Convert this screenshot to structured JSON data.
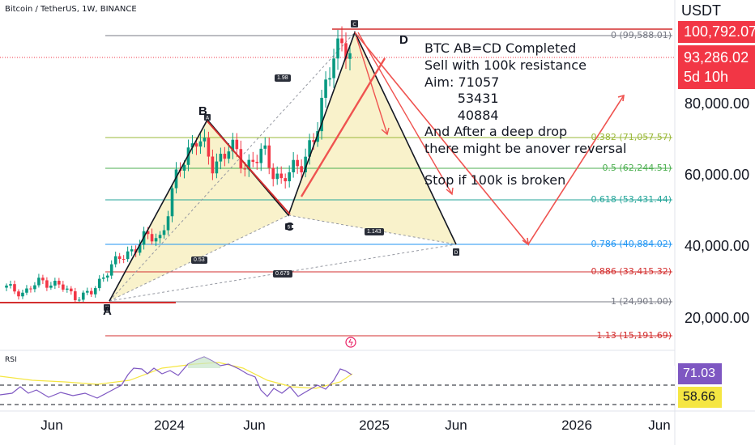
{
  "header": {
    "symbol_title": "Bitcoin / TetherUS, 1W, BINANCE"
  },
  "price_axis": {
    "currency": "USDT",
    "ticks": [
      "80,000.00",
      "60,000.00",
      "40,000.00",
      "20,000.00"
    ],
    "high_tag": {
      "value": "100,792.07",
      "color": "#f23645"
    },
    "last_tag": {
      "value": "93,286.02",
      "countdown": "5d 10h",
      "color": "#f23645"
    }
  },
  "time_axis": {
    "ticks": [
      "Jun",
      "2024",
      "Jun",
      "2025",
      "Jun",
      "2026",
      "Jun"
    ]
  },
  "annotation": {
    "lines": [
      "BTC AB=CD Completed",
      "Sell with 100k resistance",
      "Aim: 71057",
      "        53431",
      "        40884",
      "And After a deep drop",
      "there might be anover reversal",
      "",
      "Stop if 100k is broken"
    ]
  },
  "pattern_points": [
    "A",
    "B",
    "C",
    "D"
  ],
  "pattern_marks": [
    "X",
    "A",
    "B",
    "C",
    "D"
  ],
  "ratios": [
    "1.98",
    "0.53",
    "1.143",
    "0.679"
  ],
  "fib_levels": [
    {
      "ratio": "0",
      "price": "99,588.01",
      "color": "#787b86"
    },
    {
      "ratio": "0.382",
      "price": "71,057.57",
      "color": "#9ab83a"
    },
    {
      "ratio": "0.5",
      "price": "62,244.51",
      "color": "#4caf50"
    },
    {
      "ratio": "0.618",
      "price": "53,431.44",
      "color": "#26a69a"
    },
    {
      "ratio": "0.786",
      "price": "40,884.02",
      "color": "#2196f3"
    },
    {
      "ratio": "0.886",
      "price": "33,415.32",
      "color": "#d32f2f"
    },
    {
      "ratio": "1",
      "price": "24,901.00",
      "color": "#787b86"
    },
    {
      "ratio": "1.13",
      "price": "15,191.69",
      "color": "#d32f2f"
    }
  ],
  "rsi": {
    "label": "RSI",
    "value": "71.03",
    "value_color": "#7e57c2",
    "ma_value": "58.66",
    "ma_color": "#f5e642"
  },
  "chart_data": {
    "type": "candlestick",
    "title": "Bitcoin / TetherUS, 1W, BINANCE",
    "ylim": [
      10000,
      107000
    ],
    "x": [
      "2023-04",
      "2023-05",
      "2023-06",
      "2023-07",
      "2023-08",
      "2023-09",
      "2023-10",
      "2023-11",
      "2023-12",
      "2024-01",
      "2024-02",
      "2024-03",
      "2024-04",
      "2024-05",
      "2024-06",
      "2024-07",
      "2024-08",
      "2024-09",
      "2024-10",
      "2024-11",
      "2024-12"
    ],
    "close": [
      28500,
      27000,
      30400,
      29300,
      26000,
      27000,
      34500,
      37700,
      42300,
      42600,
      61000,
      71000,
      63000,
      67500,
      62700,
      66000,
      58000,
      63000,
      70000,
      96000,
      93286
    ],
    "pattern": {
      "A": 25000,
      "B": 73800,
      "C": 49000,
      "D_projected": 40884,
      "high": 100792
    },
    "fib_prices": [
      99588.01,
      71057.57,
      62244.51,
      53431.44,
      40884.02,
      33415.32,
      24901.0,
      15191.69
    ]
  }
}
